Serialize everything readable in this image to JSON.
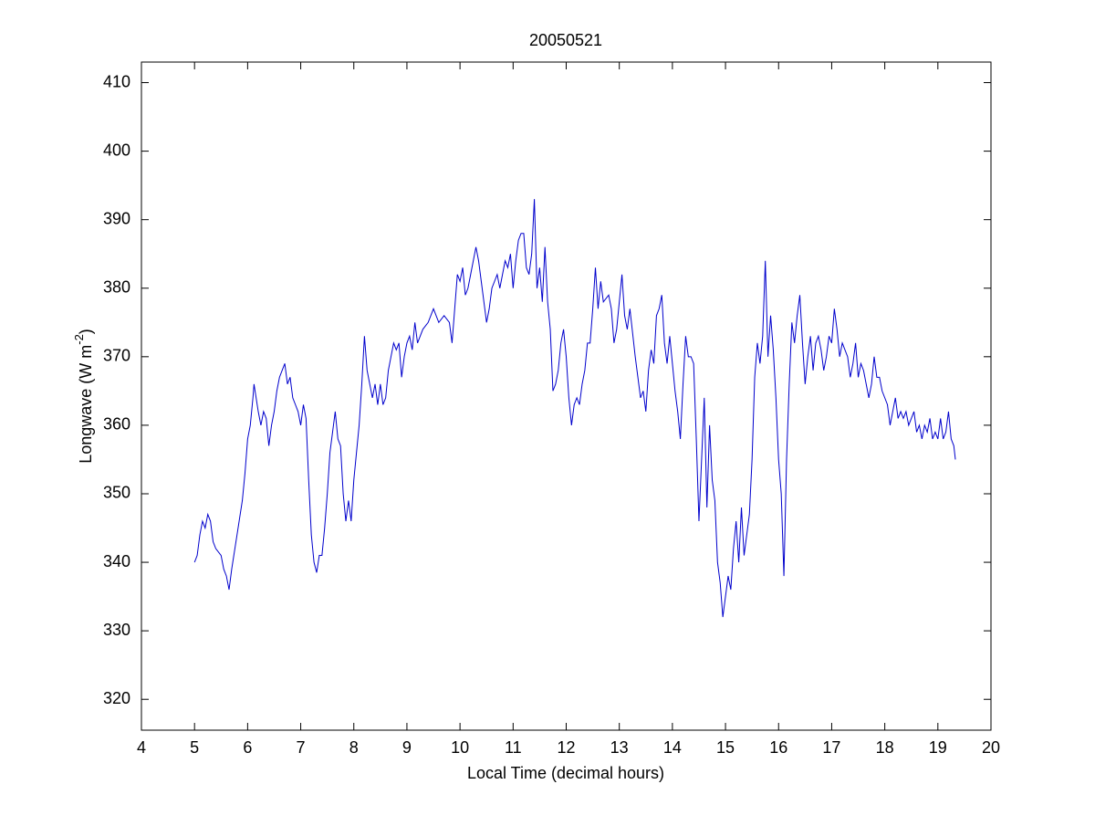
{
  "chart_data": {
    "type": "line",
    "title": "20050521",
    "xlabel": "Local Time (decimal hours)",
    "ylabel": "Longwave (W m",
    "ylabel_sup": "-2",
    "ylabel_end": ")",
    "color": "#0000cc",
    "xlim": [
      4,
      20
    ],
    "xticks": [
      4,
      5,
      6,
      7,
      8,
      9,
      10,
      11,
      12,
      13,
      14,
      15,
      16,
      17,
      18,
      19,
      20
    ],
    "ylim": [
      315.5,
      413
    ],
    "yticks": [
      320,
      330,
      340,
      350,
      360,
      370,
      380,
      390,
      400,
      410
    ],
    "x": [
      5.0,
      5.05,
      5.1,
      5.15,
      5.2,
      5.25,
      5.3,
      5.35,
      5.4,
      5.5,
      5.55,
      5.6,
      5.65,
      5.7,
      5.8,
      5.9,
      5.95,
      6.0,
      6.05,
      6.1,
      6.12,
      6.2,
      6.25,
      6.3,
      6.35,
      6.4,
      6.45,
      6.5,
      6.55,
      6.6,
      6.65,
      6.7,
      6.75,
      6.8,
      6.85,
      6.9,
      6.95,
      7.0,
      7.05,
      7.1,
      7.15,
      7.2,
      7.25,
      7.3,
      7.35,
      7.4,
      7.45,
      7.5,
      7.55,
      7.6,
      7.65,
      7.7,
      7.75,
      7.8,
      7.85,
      7.9,
      7.95,
      8.0,
      8.05,
      8.1,
      8.15,
      8.2,
      8.25,
      8.3,
      8.35,
      8.4,
      8.45,
      8.5,
      8.55,
      8.6,
      8.65,
      8.7,
      8.75,
      8.8,
      8.85,
      8.9,
      8.95,
      9.0,
      9.05,
      9.1,
      9.15,
      9.2,
      9.3,
      9.4,
      9.5,
      9.6,
      9.7,
      9.8,
      9.85,
      9.9,
      9.95,
      10.0,
      10.05,
      10.1,
      10.15,
      10.2,
      10.25,
      10.3,
      10.35,
      10.4,
      10.45,
      10.5,
      10.55,
      10.6,
      10.65,
      10.7,
      10.75,
      10.8,
      10.85,
      10.9,
      10.95,
      11.0,
      11.05,
      11.1,
      11.15,
      11.2,
      11.25,
      11.3,
      11.35,
      11.4,
      11.45,
      11.5,
      11.55,
      11.6,
      11.65,
      11.7,
      11.75,
      11.8,
      11.85,
      11.9,
      11.95,
      12.0,
      12.05,
      12.1,
      12.15,
      12.2,
      12.25,
      12.3,
      12.35,
      12.4,
      12.45,
      12.5,
      12.55,
      12.6,
      12.65,
      12.7,
      12.8,
      12.85,
      12.9,
      12.95,
      13.0,
      13.05,
      13.1,
      13.15,
      13.2,
      13.3,
      13.35,
      13.4,
      13.45,
      13.5,
      13.55,
      13.6,
      13.65,
      13.7,
      13.75,
      13.8,
      13.85,
      13.9,
      13.95,
      14.0,
      14.05,
      14.1,
      14.15,
      14.2,
      14.25,
      14.3,
      14.35,
      14.4,
      14.45,
      14.5,
      14.55,
      14.6,
      14.65,
      14.7,
      14.75,
      14.8,
      14.85,
      14.9,
      14.95,
      15.0,
      15.05,
      15.1,
      15.15,
      15.2,
      15.25,
      15.3,
      15.35,
      15.4,
      15.45,
      15.5,
      15.55,
      15.6,
      15.65,
      15.7,
      15.75,
      15.8,
      15.85,
      15.9,
      15.95,
      16.0,
      16.05,
      16.1,
      16.15,
      16.2,
      16.25,
      16.3,
      16.35,
      16.4,
      16.45,
      16.5,
      16.55,
      16.6,
      16.65,
      16.7,
      16.75,
      16.8,
      16.85,
      16.9,
      16.95,
      17.0,
      17.05,
      17.1,
      17.15,
      17.2,
      17.3,
      17.35,
      17.4,
      17.45,
      17.5,
      17.55,
      17.6,
      17.65,
      17.7,
      17.75,
      17.8,
      17.85,
      17.9,
      17.95,
      18.0,
      18.05,
      18.1,
      18.15,
      18.2,
      18.25,
      18.3,
      18.35,
      18.4,
      18.45,
      18.5,
      18.55,
      18.6,
      18.65,
      18.7,
      18.75,
      18.8,
      18.85,
      18.9,
      18.95,
      19.0,
      19.05,
      19.1,
      19.15,
      19.2,
      19.25,
      19.3,
      19.33
    ],
    "values": [
      340,
      341,
      344,
      346,
      345,
      347,
      346,
      343,
      342,
      341,
      339,
      338,
      336,
      339,
      344,
      349,
      353,
      358,
      360,
      364,
      366,
      362,
      360,
      362,
      361,
      357,
      360,
      362,
      365,
      367,
      368,
      369,
      366,
      367,
      364,
      363,
      362,
      360,
      363,
      361,
      352,
      344,
      340,
      338.5,
      341,
      341,
      345,
      350,
      356,
      359,
      362,
      358,
      357,
      350,
      346,
      349,
      346,
      352,
      356,
      360,
      366,
      373,
      368,
      366,
      364,
      366,
      363,
      366,
      363,
      364,
      368,
      370,
      372,
      371,
      372,
      367,
      370,
      372,
      373,
      371,
      375,
      372,
      374,
      375,
      377,
      375,
      376,
      375,
      372,
      377,
      382,
      381,
      383,
      379,
      380,
      382,
      384,
      386,
      384,
      381,
      378,
      375,
      377,
      380,
      381,
      382,
      380,
      382,
      384,
      383,
      385,
      380,
      384,
      387,
      388,
      388,
      383,
      382,
      385,
      393,
      380,
      383,
      378,
      386,
      378,
      374,
      365,
      366,
      368,
      372,
      374,
      370,
      364,
      360,
      363,
      364,
      363,
      366,
      368,
      372,
      372,
      377,
      383,
      377,
      381,
      378,
      379,
      377,
      372,
      374,
      378,
      382,
      376,
      374,
      377,
      370,
      367,
      364,
      365,
      362,
      368,
      371,
      369,
      376,
      377,
      379,
      372,
      369,
      373,
      369,
      365,
      362,
      358,
      366,
      373,
      370,
      370,
      369,
      358,
      346,
      355,
      364,
      348,
      360,
      352,
      349,
      340,
      337,
      332,
      335,
      338,
      336,
      342,
      346,
      340,
      348,
      341,
      344,
      347,
      355,
      367,
      372,
      369,
      373,
      384,
      370,
      376,
      371,
      364,
      355,
      350,
      338,
      355,
      366,
      375,
      372,
      376,
      379,
      372,
      366,
      370,
      373,
      368,
      372,
      373,
      371,
      368,
      370,
      373,
      372,
      377,
      374,
      370,
      372,
      370,
      367,
      369,
      372,
      367,
      369,
      368,
      366,
      364,
      366,
      370,
      367,
      367,
      365,
      364,
      363,
      360,
      362,
      364,
      361,
      362,
      361,
      362,
      360,
      361,
      362,
      359,
      360,
      358,
      360,
      359,
      361,
      358,
      359,
      358,
      361,
      358,
      359,
      362,
      358,
      357,
      355
    ]
  }
}
